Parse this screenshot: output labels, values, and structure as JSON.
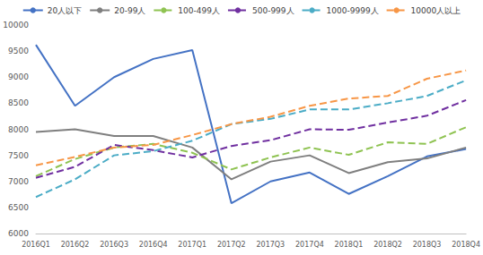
{
  "chart_data": {
    "type": "line",
    "categories": [
      "2016Q1",
      "2016Q2",
      "2016Q3",
      "2016Q4",
      "2017Q1",
      "2017Q2",
      "2017Q3",
      "2017Q4",
      "2018Q1",
      "2018Q2",
      "2018Q3",
      "2018Q4"
    ],
    "series": [
      {
        "name": "20人以下",
        "color": "#4472c4",
        "line_style": "solid",
        "values": [
          9620,
          8450,
          9000,
          9350,
          9520,
          6580,
          7000,
          7170,
          6760,
          7100,
          7480,
          7620
        ]
      },
      {
        "name": "20-99人",
        "color": "#7f7f7f",
        "line_style": "solid",
        "values": [
          7950,
          8000,
          7870,
          7870,
          7650,
          7040,
          7380,
          7500,
          7160,
          7370,
          7440,
          7650
        ]
      },
      {
        "name": "100-499人",
        "color": "#8fc352",
        "line_style": "dashed",
        "values": [
          7100,
          7430,
          7650,
          7720,
          7550,
          7230,
          7460,
          7650,
          7510,
          7750,
          7720,
          8040
        ]
      },
      {
        "name": "500-999人",
        "color": "#7030a0",
        "line_style": "dashed",
        "values": [
          7070,
          7280,
          7700,
          7600,
          7460,
          7680,
          7790,
          8000,
          7990,
          8130,
          8260,
          8560
        ]
      },
      {
        "name": "1000-9999人",
        "color": "#4bacc6",
        "line_style": "dashed",
        "values": [
          6700,
          7040,
          7500,
          7580,
          7780,
          8100,
          8200,
          8380,
          8380,
          8500,
          8640,
          8940
        ]
      },
      {
        "name": "10000人以上",
        "color": "#f79646",
        "line_style": "dashed",
        "values": [
          7310,
          7470,
          7650,
          7700,
          7890,
          8100,
          8240,
          8450,
          8590,
          8640,
          8970,
          9130
        ]
      }
    ],
    "ylim": [
      6000,
      10000
    ],
    "yticks": [
      6000,
      6500,
      7000,
      7500,
      8000,
      8500,
      9000,
      9500,
      10000
    ],
    "grid": false,
    "legend": "top",
    "marker": "none"
  }
}
